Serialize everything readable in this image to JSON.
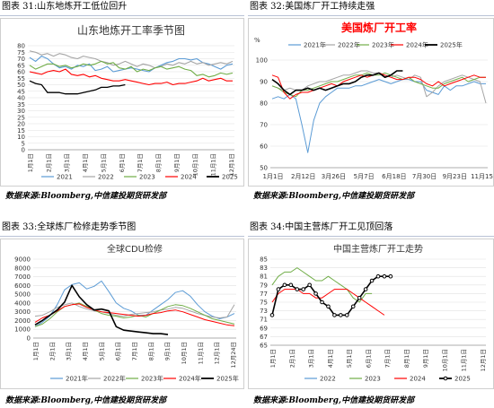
{
  "colors": {
    "y2021": "#5b9bd5",
    "y2022": "#a5a5a5",
    "y2023": "#70ad47",
    "y2024": "#ff0000",
    "y2025": "#000000",
    "grid": "#e0e0e0",
    "axis": "#999999",
    "caption_rule": "#b9c2d6",
    "us_title": "#ff0000"
  },
  "source_text": "数据来源:Bloomberg,中信建投期货研发部",
  "chart_data": [
    {
      "id": "c31",
      "caption": "图表 31:山东地炼开工低位回升",
      "title": "山东地炼开工率季节图",
      "type": "line",
      "ylim": [
        0,
        80
      ],
      "yticks": [
        0,
        5,
        10,
        15,
        20,
        25,
        30,
        35,
        40,
        45,
        50,
        55,
        60,
        65,
        70,
        75,
        80
      ],
      "xticks": [
        "1月1日",
        "2月1日",
        "3月1日",
        "4月1日",
        "5月1日",
        "6月1日",
        "7月1日",
        "8月1日",
        "9月1日",
        "10月1日",
        "11月1日",
        "12月1日"
      ],
      "legend_position": "bottom",
      "series": [
        {
          "name": "2021",
          "color_key": "y2021",
          "values": [
            71,
            68,
            72,
            70,
            66,
            63,
            64,
            62,
            65,
            64,
            66,
            61,
            62,
            64,
            60,
            61,
            62,
            63,
            62,
            61,
            60,
            63,
            65,
            67,
            68,
            70,
            70,
            69,
            70,
            67,
            66,
            64,
            62,
            65,
            66
          ],
          "width": 1.1
        },
        {
          "name": "2022",
          "color_key": "y2022",
          "values": [
            76,
            75,
            73,
            74,
            72,
            74,
            73,
            71,
            70,
            72,
            71,
            70,
            68,
            67,
            65,
            66,
            68,
            66,
            64,
            66,
            65,
            63,
            64,
            66,
            65,
            67,
            66,
            68,
            66,
            67,
            65,
            66,
            67,
            66,
            68
          ],
          "width": 1.1
        },
        {
          "name": "2023",
          "color_key": "y2023",
          "values": [
            65,
            62,
            64,
            66,
            66,
            64,
            65,
            63,
            64,
            66,
            65,
            66,
            68,
            66,
            67,
            63,
            62,
            64,
            60,
            62,
            61,
            63,
            64,
            62,
            63,
            64,
            62,
            61,
            57,
            58,
            56,
            57,
            59,
            58,
            59
          ],
          "width": 1.1
        },
        {
          "name": "2024",
          "color_key": "y2024",
          "values": [
            60,
            59,
            58,
            60,
            61,
            60,
            62,
            58,
            57,
            58,
            56,
            57,
            55,
            54,
            53,
            53,
            54,
            53,
            52,
            51,
            50,
            51,
            51,
            52,
            50,
            51,
            51,
            52,
            53,
            55,
            53,
            54,
            55,
            53,
            53
          ],
          "width": 1.1
        },
        {
          "name": "2025",
          "color_key": "y2025",
          "values": [
            53,
            51,
            50,
            44,
            44,
            44,
            43,
            43,
            43,
            44,
            45,
            46,
            48,
            48,
            49,
            49,
            50
          ],
          "width": 1.3
        }
      ]
    },
    {
      "id": "c32",
      "caption": "图表 32:美国炼厂开工持续走强",
      "title": "美国炼厂开工率",
      "type": "line",
      "yunit": "%",
      "ylim": [
        50,
        100
      ],
      "yticks": [
        50,
        60,
        70,
        80,
        90,
        100
      ],
      "xticks": [
        "1月1日",
        "2月12日",
        "3月26日",
        "5月7日",
        "6月18日",
        "7月30日",
        "9月23日",
        "11月15日"
      ],
      "legend_position": "top",
      "series": [
        {
          "name": "2021年",
          "color_key": "y2021",
          "values": [
            82,
            83,
            82,
            84,
            82,
            70,
            57,
            72,
            80,
            83,
            85,
            87,
            87,
            87,
            88,
            88,
            89,
            90,
            91,
            90,
            89,
            90,
            91,
            91,
            90,
            90,
            86,
            85,
            84,
            88,
            86,
            88,
            88,
            89,
            90,
            89,
            89
          ],
          "width": 1
        },
        {
          "name": "2022年",
          "color_key": "y2022",
          "values": [
            88,
            87,
            86,
            87,
            86,
            86,
            88,
            89,
            90,
            90,
            91,
            92,
            93,
            93,
            94,
            95,
            95,
            94,
            94,
            93,
            92,
            93,
            92,
            91,
            93,
            92,
            83,
            85,
            88,
            90,
            91,
            92,
            93,
            92,
            91,
            90,
            80
          ],
          "width": 1
        },
        {
          "name": "2023年",
          "color_key": "y2023",
          "values": [
            88,
            87,
            85,
            84,
            83,
            86,
            86,
            87,
            88,
            89,
            90,
            90,
            91,
            92,
            93,
            93,
            94,
            93,
            93,
            94,
            93,
            92,
            91,
            92,
            90,
            89,
            88,
            87,
            87,
            89,
            90,
            91,
            92,
            90,
            91,
            92,
            92
          ],
          "width": 1
        },
        {
          "name": "2024年",
          "color_key": "y2024",
          "values": [
            93,
            92,
            85,
            82,
            84,
            85,
            85,
            86,
            87,
            88,
            89,
            88,
            90,
            91,
            92,
            93,
            92,
            93,
            94,
            93,
            92,
            91,
            91,
            92,
            92,
            91,
            89,
            88,
            90,
            88,
            89,
            90,
            91,
            92,
            93,
            92,
            92
          ],
          "width": 1
        },
        {
          "name": "2025年",
          "color_key": "y2025",
          "values": [
            91,
            89,
            86,
            84,
            86,
            86,
            87,
            86,
            87,
            86,
            87,
            88,
            89,
            89,
            90,
            92,
            93,
            93,
            94,
            92,
            93,
            95,
            95
          ],
          "width": 1.6
        }
      ]
    },
    {
      "id": "c33",
      "caption": "图表 33:全球炼厂检修走势季节图",
      "title": "全球CDU检修",
      "type": "line",
      "ylim": [
        0,
        9000
      ],
      "yticks": [
        0,
        1000,
        2000,
        3000,
        4000,
        5000,
        6000,
        7000,
        8000,
        9000
      ],
      "xticks": [
        "1月1日",
        "2月1日",
        "3月1日",
        "4月1日",
        "5月1日",
        "6月1日",
        "7月1日",
        "8月1日",
        "9月1日",
        "10月1日",
        "11月1日",
        "12月1日",
        "12月24日"
      ],
      "legend_position": "bottom",
      "series": [
        {
          "name": "2021年",
          "color_key": "y2021",
          "values": [
            1300,
            1800,
            2500,
            3800,
            5500,
            6100,
            6300,
            5600,
            5900,
            6500,
            5300,
            4000,
            3400,
            3100,
            2600,
            2600,
            3200,
            3800,
            4400,
            5200,
            5400,
            4800,
            3800,
            3000,
            2500,
            2200,
            2400,
            2800
          ],
          "width": 1
        },
        {
          "name": "2022年",
          "color_key": "y2022",
          "values": [
            2500,
            2600,
            3000,
            3500,
            3800,
            4000,
            3600,
            3300,
            3100,
            3000,
            2800,
            2600,
            2500,
            2700,
            2800,
            2900,
            3000,
            3200,
            3300,
            3500,
            3400,
            3100,
            2800,
            2600,
            2400,
            2300,
            2400,
            3800
          ],
          "width": 1
        },
        {
          "name": "2023年",
          "color_key": "y2023",
          "values": [
            1300,
            1600,
            2200,
            3000,
            3600,
            3800,
            4000,
            3600,
            3200,
            2800,
            2600,
            2500,
            2300,
            2400,
            2600,
            2400,
            2800,
            3200,
            3600,
            3800,
            3700,
            3400,
            3000,
            2600,
            2200,
            2000,
            1800,
            1600
          ],
          "width": 1
        },
        {
          "name": "2024年",
          "color_key": "y2024",
          "values": [
            1800,
            2300,
            2600,
            3100,
            3600,
            3800,
            3900,
            3500,
            3200,
            3000,
            2900,
            2800,
            2700,
            2600,
            2500,
            2600,
            2800,
            2900,
            3100,
            3200,
            3000,
            2700,
            2400,
            2100,
            1900,
            1700,
            1500,
            1400
          ],
          "width": 1
        },
        {
          "name": "2025年",
          "color_key": "y2025",
          "values": [
            1500,
            2000,
            2600,
            3200,
            4100,
            6000,
            4700,
            3800,
            3200,
            3300,
            3100,
            1300,
            900,
            800,
            700,
            600,
            500,
            500,
            400
          ],
          "width": 1.6
        }
      ]
    },
    {
      "id": "c34",
      "caption": "图表 34:中国主营炼厂开工见顶回落",
      "title": "中国主营炼厂开工走势",
      "type": "line",
      "ylim": [
        65,
        85
      ],
      "yticks": [
        65,
        67,
        69,
        71,
        73,
        75,
        77,
        79,
        81,
        83,
        85
      ],
      "xticks": [
        "1月1日",
        "2月1日",
        "3月1日",
        "4月1日",
        "5月1日",
        "6月1日",
        "7月1日",
        "8月1日",
        "9月1日",
        "10月1日",
        "11月1日",
        "12月1日"
      ],
      "legend_position": "bottom",
      "series": [
        {
          "name": "2022",
          "color_key": "y2021",
          "values": [],
          "width": 1
        },
        {
          "name": "2023",
          "color_key": "y2023",
          "values": [
            79,
            81,
            82,
            82,
            83,
            82,
            81,
            80,
            80,
            81,
            80,
            79,
            78,
            76,
            75,
            77,
            77
          ],
          "width": 1
        },
        {
          "name": "2024",
          "color_key": "y2024",
          "values": [
            75,
            77,
            78,
            78,
            78,
            77,
            77,
            76,
            76,
            77,
            78,
            78,
            78,
            77,
            76,
            75,
            74,
            73,
            72
          ],
          "width": 1
        },
        {
          "name": "2025",
          "color_key": "y2025",
          "values": [
            72,
            78,
            79,
            79,
            78,
            78,
            79,
            77,
            75,
            74,
            72,
            72,
            72,
            74,
            76,
            78,
            80,
            81,
            81,
            81
          ],
          "width": 1.6
        }
      ]
    }
  ]
}
